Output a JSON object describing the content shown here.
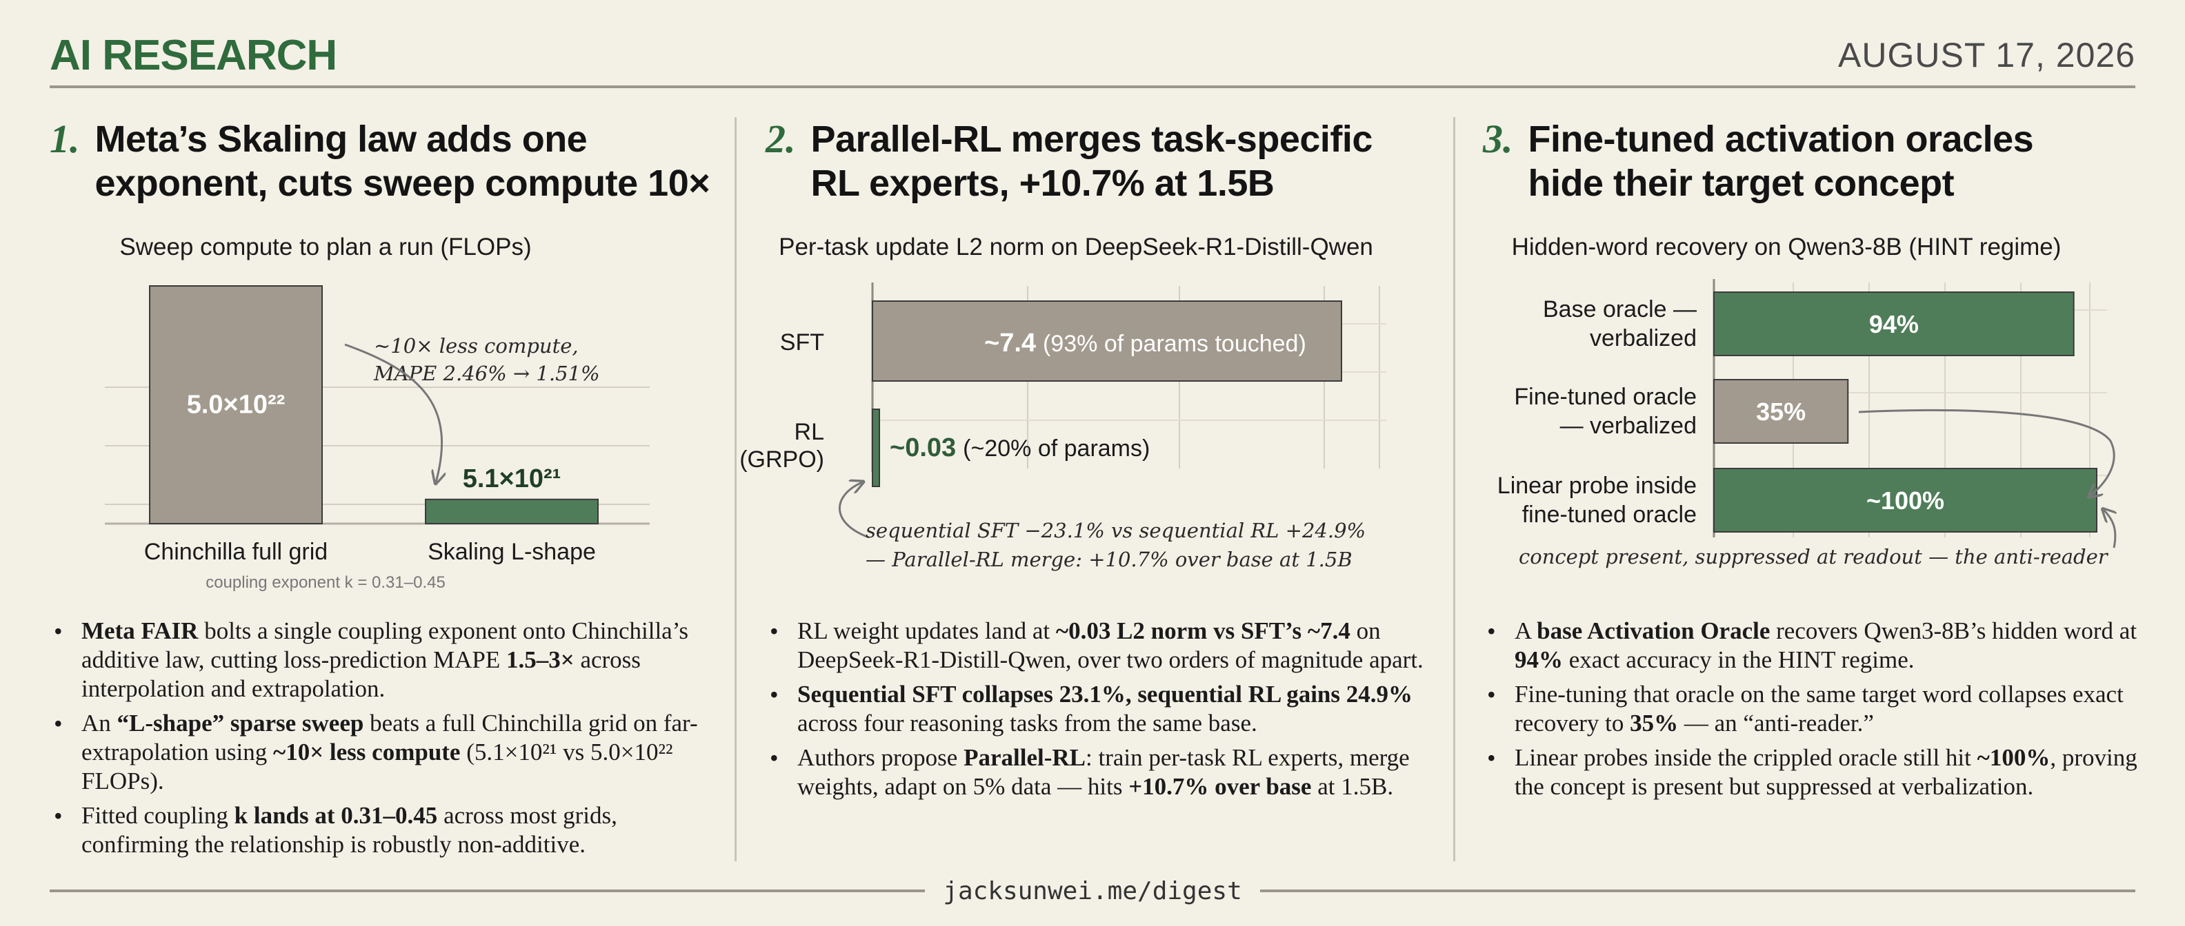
{
  "header": {
    "brand": "AI RESEARCH",
    "date": "AUGUST 17, 2026"
  },
  "footer": {
    "url": "jacksunwei.me/digest"
  },
  "sections": [
    {
      "number": "1.",
      "title_line1": "Meta’s Skaling law adds one",
      "title_line2": "exponent, cuts sweep compute 10×",
      "bullets": [
        [
          "",
          "Meta FAIR",
          " bolts a single coupling exponent onto Chinchilla’s additive law, cutting loss-prediction MAPE ",
          "1.5–3×",
          " across interpolation and extrapolation."
        ],
        [
          "An ",
          "“L-shape” sparse sweep",
          " beats a full Chinchilla grid on far-extrapolation using ",
          "~10× less compute",
          " (5.1×10²¹ vs 5.0×10²² FLOPs)."
        ],
        [
          "Fitted coupling ",
          "k lands at 0.31–0.45",
          " across most grids, confirming the relationship is robustly non-additive.",
          "",
          ""
        ]
      ]
    },
    {
      "number": "2.",
      "title_line1": "Parallel-RL merges task-specific",
      "title_line2": "RL experts, +10.7% at 1.5B",
      "bullets": [
        [
          "RL weight updates land at ",
          "~0.03 L2 norm vs SFT’s ~7.4",
          " on DeepSeek-R1-Distill-Qwen, over two orders of magnitude apart.",
          "",
          ""
        ],
        [
          "",
          "Sequential SFT collapses 23.1%, sequential RL gains 24.9%",
          " across four reasoning tasks from the same base.",
          "",
          ""
        ],
        [
          "Authors propose ",
          "Parallel-RL",
          ": train per-task RL experts, merge weights, adapt on 5% data — hits ",
          "+10.7% over base",
          " at 1.5B."
        ]
      ]
    },
    {
      "number": "3.",
      "title_line1": "Fine-tuned activation oracles",
      "title_line2": "hide their target concept",
      "bullets": [
        [
          "A ",
          "base Activation Oracle",
          " recovers Qwen3-8B’s hidden word at ",
          "94%",
          " exact accuracy in the HINT regime."
        ],
        [
          "Fine-tuning that oracle on the same target word collapses exact recovery to ",
          "35%",
          " — an “anti-reader.”",
          "",
          ""
        ],
        [
          "Linear probes inside the crippled oracle still hit ",
          "~100%",
          ", proving the concept is present but suppressed at verbalization.",
          "",
          ""
        ]
      ]
    }
  ],
  "chart_data": [
    {
      "type": "bar",
      "title": "Sweep compute to plan a run (FLOPs)",
      "categories": [
        "Chinchilla full grid",
        "Skaling L-shape"
      ],
      "values": [
        5e+22,
        5.1e+21
      ],
      "value_labels": [
        "5.0×10²²",
        "5.1×10²¹"
      ],
      "annotation": [
        "~10× less compute,",
        "MAPE 2.46% → 1.51%"
      ],
      "note": "coupling exponent k = 0.31–0.45",
      "colors": [
        "#a29a8e",
        "#4f7d59"
      ],
      "grid": true
    },
    {
      "type": "bar",
      "orientation": "horizontal",
      "title": "Per-task update L2 norm on DeepSeek-R1-Distill-Qwen",
      "categories": [
        "SFT",
        "RL (GRPO)"
      ],
      "values": [
        7.4,
        0.03
      ],
      "value_labels": [
        "~7.4",
        "~0.03"
      ],
      "value_notes": [
        "(93% of params touched)",
        "(~20% of params)"
      ],
      "annotation": [
        "sequential SFT −23.1% vs sequential RL +24.9%",
        "— Parallel-RL merge: +10.7% over base at 1.5B"
      ],
      "colors": [
        "#a29a8e",
        "#4f7d59"
      ],
      "grid": true
    },
    {
      "type": "bar",
      "orientation": "horizontal",
      "title": "Hidden-word recovery on Qwen3-8B (HINT regime)",
      "categories": [
        "Base oracle — verbalized",
        "Fine-tuned oracle — verbalized",
        "Linear probe inside fine-tuned oracle"
      ],
      "values": [
        94,
        35,
        100
      ],
      "value_labels": [
        "94%",
        "35%",
        "~100%"
      ],
      "annotation": "concept present, suppressed at readout — the anti-reader",
      "colors": [
        "#4f7d59",
        "#a29a8e",
        "#4f7d59"
      ],
      "grid": true
    }
  ]
}
